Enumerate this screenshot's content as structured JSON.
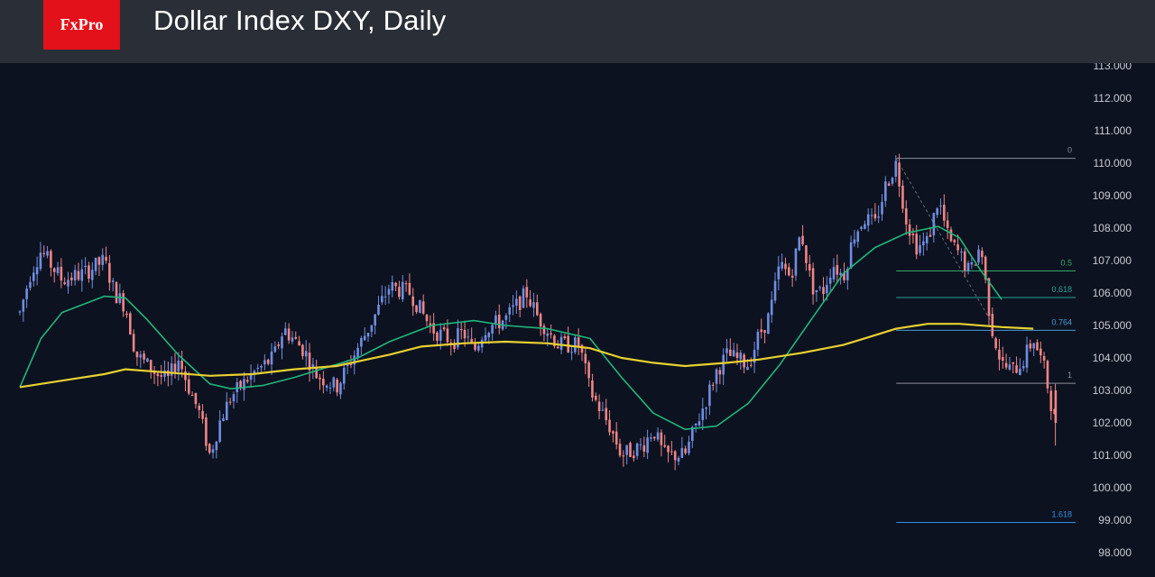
{
  "header": {
    "logo": "FxPro",
    "title": "Dollar Index DXY, Daily"
  },
  "colors": {
    "background": "#0d1220",
    "header": "#2a2e36",
    "logo_bg": "#e3111a",
    "up_candle": "#6f8ee0",
    "down_candle": "#ef8585",
    "ma_fast": "#1fb77b",
    "ma_slow": "#e8d131",
    "fib_line": "#8a8f99"
  },
  "chart_data": {
    "type": "candlestick",
    "y_axis": {
      "range": [
        97.6,
        113.3
      ],
      "ticks": [
        "98.000",
        "99.000",
        "100.000",
        "101.000",
        "102.000",
        "103.000",
        "104.000",
        "105.000",
        "106.000",
        "107.000",
        "108.000",
        "109.000",
        "110.000",
        "111.000",
        "112.000",
        "113.000"
      ],
      "position": "right"
    },
    "x_range": [
      0,
      100
    ],
    "price_path": [
      [
        0,
        105.4
      ],
      [
        1,
        106.6
      ],
      [
        2,
        107.3
      ],
      [
        4,
        106.4
      ],
      [
        6,
        106.6
      ],
      [
        8,
        107.0
      ],
      [
        9,
        106.0
      ],
      [
        10,
        105.6
      ],
      [
        11,
        104.1
      ],
      [
        12,
        103.8
      ],
      [
        13,
        103.5
      ],
      [
        14,
        103.3
      ],
      [
        15,
        104.0
      ],
      [
        16,
        103.1
      ],
      [
        17,
        102.3
      ],
      [
        18,
        101.0
      ],
      [
        19,
        102.1
      ],
      [
        20,
        102.8
      ],
      [
        22,
        103.5
      ],
      [
        24,
        104.0
      ],
      [
        25,
        104.9
      ],
      [
        27,
        104.2
      ],
      [
        28,
        103.5
      ],
      [
        30,
        103.1
      ],
      [
        31,
        103.7
      ],
      [
        33,
        104.9
      ],
      [
        35,
        106.2
      ],
      [
        37,
        106.0
      ],
      [
        39,
        104.9
      ],
      [
        41,
        104.5
      ],
      [
        42,
        104.8
      ],
      [
        43,
        104.2
      ],
      [
        44,
        104.9
      ],
      [
        46,
        105.2
      ],
      [
        48,
        106.0
      ],
      [
        49,
        105.3
      ],
      [
        51,
        104.4
      ],
      [
        53,
        104.4
      ],
      [
        54,
        103.0
      ],
      [
        55,
        102.4
      ],
      [
        56,
        101.8
      ],
      [
        57,
        101.0
      ],
      [
        59,
        101.3
      ],
      [
        60,
        101.8
      ],
      [
        61,
        101.0
      ],
      [
        63,
        101.0
      ],
      [
        64,
        101.9
      ],
      [
        65,
        102.7
      ],
      [
        66,
        103.6
      ],
      [
        67,
        104.1
      ],
      [
        69,
        103.8
      ],
      [
        70,
        104.7
      ],
      [
        71,
        105.3
      ],
      [
        72,
        106.9
      ],
      [
        73,
        106.5
      ],
      [
        74,
        107.9
      ],
      [
        75,
        106.2
      ],
      [
        76,
        106.0
      ],
      [
        77,
        106.9
      ],
      [
        78,
        106.5
      ],
      [
        79,
        107.8
      ],
      [
        80,
        108.3
      ],
      [
        81,
        108.1
      ],
      [
        82,
        109.3
      ],
      [
        83,
        110.0
      ],
      [
        84,
        108.2
      ],
      [
        85,
        107.4
      ],
      [
        86,
        107.6
      ],
      [
        87,
        108.9
      ],
      [
        88,
        107.6
      ],
      [
        89,
        107.2
      ],
      [
        90,
        106.6
      ],
      [
        91,
        107.5
      ],
      [
        92,
        105.0
      ],
      [
        93,
        103.8
      ],
      [
        94,
        103.6
      ],
      [
        95,
        103.9
      ],
      [
        96,
        104.6
      ],
      [
        97,
        103.7
      ],
      [
        98,
        102.1
      ]
    ],
    "series": [
      {
        "name": "",
        "color": "#1fb77b",
        "points": [
          [
            0,
            103.1
          ],
          [
            2,
            104.6
          ],
          [
            4,
            105.4
          ],
          [
            8,
            105.9
          ],
          [
            10,
            105.85
          ],
          [
            12,
            105.2
          ],
          [
            15,
            104.1
          ],
          [
            18,
            103.2
          ],
          [
            20,
            103.05
          ],
          [
            23,
            103.15
          ],
          [
            26,
            103.4
          ],
          [
            29,
            103.7
          ],
          [
            32,
            104.0
          ],
          [
            35,
            104.5
          ],
          [
            39,
            105.0
          ],
          [
            43,
            105.15
          ],
          [
            46,
            105.0
          ],
          [
            50,
            104.9
          ],
          [
            54,
            104.6
          ],
          [
            57,
            103.4
          ],
          [
            60,
            102.3
          ],
          [
            63,
            101.8
          ],
          [
            66,
            101.9
          ],
          [
            69,
            102.6
          ],
          [
            72,
            103.8
          ],
          [
            75,
            105.2
          ],
          [
            78,
            106.6
          ],
          [
            81,
            107.4
          ],
          [
            84,
            107.85
          ],
          [
            87,
            108.05
          ],
          [
            89,
            107.7
          ],
          [
            91,
            106.7
          ],
          [
            93,
            105.8
          ]
        ]
      },
      {
        "name": "",
        "color": "#e8d131",
        "points": [
          [
            0,
            103.1
          ],
          [
            4,
            103.3
          ],
          [
            8,
            103.5
          ],
          [
            10,
            103.65
          ],
          [
            14,
            103.55
          ],
          [
            18,
            103.45
          ],
          [
            22,
            103.5
          ],
          [
            26,
            103.65
          ],
          [
            30,
            103.75
          ],
          [
            35,
            104.1
          ],
          [
            38,
            104.35
          ],
          [
            42,
            104.45
          ],
          [
            46,
            104.5
          ],
          [
            50,
            104.45
          ],
          [
            54,
            104.3
          ],
          [
            57,
            104.0
          ],
          [
            60,
            103.85
          ],
          [
            63,
            103.75
          ],
          [
            67,
            103.85
          ],
          [
            70,
            103.95
          ],
          [
            74,
            104.15
          ],
          [
            78,
            104.4
          ],
          [
            80,
            104.6
          ],
          [
            83,
            104.9
          ],
          [
            86,
            105.05
          ],
          [
            89,
            105.05
          ],
          [
            93,
            104.95
          ],
          [
            96,
            104.9
          ]
        ]
      }
    ],
    "fibonacci": [
      {
        "label": "0",
        "price": 110.15,
        "color": "#8a8f99"
      },
      {
        "label": "0.5",
        "price": 106.68,
        "color": "#3aa76d"
      },
      {
        "label": "0.618",
        "price": 105.86,
        "color": "#23a38f"
      },
      {
        "label": "0.764",
        "price": 104.85,
        "color": "#4a9ad0"
      },
      {
        "label": "1",
        "price": 103.22,
        "color": "#8a8f99"
      },
      {
        "label": "1.618",
        "price": 98.93,
        "color": "#2f8fe0"
      }
    ],
    "fib_start_x": 83,
    "grid": false,
    "legend": "none"
  }
}
